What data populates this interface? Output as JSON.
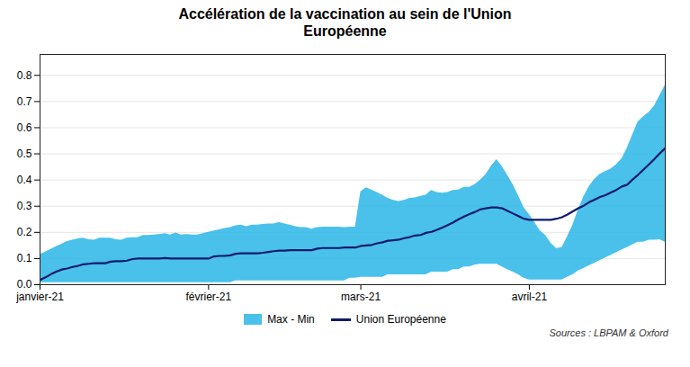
{
  "chart_data": {
    "type": "area",
    "title": "Accélération de la vaccination au sein de l'Union\nEuropéenne",
    "source": "Sources : LBPAM & Oxford",
    "x": [
      0,
      1,
      2,
      3,
      4,
      5,
      6,
      7,
      8,
      9,
      10,
      11,
      12,
      13,
      14,
      15,
      16,
      17,
      18,
      19,
      20,
      21,
      22,
      23,
      24,
      25,
      26,
      27,
      28,
      29,
      30,
      31,
      32,
      33,
      34,
      35,
      36,
      37,
      38,
      39,
      40,
      41,
      42,
      43,
      44,
      45,
      46,
      47,
      48,
      49,
      50,
      51,
      52,
      53,
      54,
      55,
      56,
      57,
      58,
      59,
      60,
      61,
      62,
      63,
      64,
      65,
      66,
      67,
      68,
      69,
      70,
      71,
      72,
      73,
      74,
      75,
      76,
      77,
      78,
      79,
      80,
      81,
      82,
      83,
      84,
      85,
      86,
      87,
      88,
      89,
      90,
      91,
      92,
      93,
      94,
      95,
      96,
      97,
      98,
      99,
      100,
      101,
      102,
      103,
      104,
      105,
      106,
      107,
      108,
      109,
      110,
      111,
      112,
      113,
      114,
      115
    ],
    "xlim": [
      0,
      115
    ],
    "xticks": [
      {
        "value": 0,
        "label": "janvier-21"
      },
      {
        "value": 31,
        "label": "février-21"
      },
      {
        "value": 59,
        "label": "mars-21"
      },
      {
        "value": 90,
        "label": "avril-21"
      }
    ],
    "ylim": [
      0,
      0.88
    ],
    "yticks": [
      {
        "value": 0,
        "label": "0.0"
      },
      0.1,
      0.2,
      0.3,
      0.4,
      0.5,
      0.6,
      0.7,
      0.8
    ],
    "grid": true,
    "legend": "bottom",
    "series": [
      {
        "name": "Max - Min",
        "type": "area",
        "color": "#29B6E8",
        "max_values": [
          0.115,
          0.125,
          0.135,
          0.145,
          0.155,
          0.165,
          0.17,
          0.175,
          0.178,
          0.172,
          0.17,
          0.178,
          0.178,
          0.178,
          0.172,
          0.17,
          0.178,
          0.18,
          0.18,
          0.188,
          0.188,
          0.19,
          0.192,
          0.195,
          0.19,
          0.198,
          0.19,
          0.192,
          0.19,
          0.19,
          0.195,
          0.2,
          0.205,
          0.21,
          0.215,
          0.218,
          0.225,
          0.228,
          0.222,
          0.228,
          0.228,
          0.23,
          0.232,
          0.232,
          0.238,
          0.232,
          0.228,
          0.222,
          0.218,
          0.218,
          0.212,
          0.218,
          0.22,
          0.22,
          0.22,
          0.22,
          0.218,
          0.22,
          0.22,
          0.355,
          0.37,
          0.362,
          0.352,
          0.342,
          0.33,
          0.322,
          0.318,
          0.322,
          0.33,
          0.332,
          0.338,
          0.342,
          0.36,
          0.352,
          0.35,
          0.352,
          0.36,
          0.362,
          0.372,
          0.372,
          0.382,
          0.4,
          0.42,
          0.452,
          0.478,
          0.452,
          0.418,
          0.382,
          0.34,
          0.295,
          0.268,
          0.238,
          0.205,
          0.188,
          0.158,
          0.138,
          0.142,
          0.182,
          0.228,
          0.285,
          0.335,
          0.375,
          0.402,
          0.422,
          0.432,
          0.442,
          0.458,
          0.48,
          0.522,
          0.572,
          0.622,
          0.642,
          0.658,
          0.682,
          0.722,
          0.762
        ],
        "min_values": [
          0.008,
          0.008,
          0.008,
          0.008,
          0.008,
          0.008,
          0.008,
          0.008,
          0.008,
          0.008,
          0.008,
          0.008,
          0.008,
          0.008,
          0.008,
          0.008,
          0.008,
          0.008,
          0.008,
          0.008,
          0.008,
          0.008,
          0.008,
          0.008,
          0.008,
          0.008,
          0.008,
          0.008,
          0.008,
          0.008,
          0.008,
          0.008,
          0.008,
          0.008,
          0.008,
          0.008,
          0.015,
          0.015,
          0.015,
          0.015,
          0.015,
          0.015,
          0.015,
          0.015,
          0.015,
          0.015,
          0.015,
          0.015,
          0.015,
          0.015,
          0.015,
          0.015,
          0.015,
          0.015,
          0.015,
          0.015,
          0.015,
          0.025,
          0.025,
          0.028,
          0.028,
          0.028,
          0.028,
          0.028,
          0.038,
          0.038,
          0.038,
          0.038,
          0.038,
          0.038,
          0.038,
          0.038,
          0.048,
          0.048,
          0.048,
          0.048,
          0.058,
          0.058,
          0.068,
          0.068,
          0.075,
          0.078,
          0.078,
          0.078,
          0.078,
          0.068,
          0.058,
          0.048,
          0.038,
          0.025,
          0.018,
          0.018,
          0.018,
          0.018,
          0.018,
          0.018,
          0.018,
          0.028,
          0.038,
          0.052,
          0.062,
          0.072,
          0.082,
          0.092,
          0.102,
          0.112,
          0.122,
          0.132,
          0.142,
          0.152,
          0.162,
          0.162,
          0.17,
          0.17,
          0.172,
          0.162
        ]
      },
      {
        "name": "Union Européenne",
        "type": "line",
        "color": "#0D1B6E",
        "values": [
          0.018,
          0.028,
          0.04,
          0.05,
          0.058,
          0.062,
          0.068,
          0.072,
          0.078,
          0.08,
          0.082,
          0.082,
          0.082,
          0.088,
          0.09,
          0.09,
          0.092,
          0.098,
          0.1,
          0.1,
          0.1,
          0.1,
          0.1,
          0.102,
          0.1,
          0.1,
          0.1,
          0.1,
          0.1,
          0.1,
          0.1,
          0.1,
          0.108,
          0.11,
          0.11,
          0.112,
          0.118,
          0.12,
          0.12,
          0.12,
          0.12,
          0.122,
          0.125,
          0.128,
          0.13,
          0.13,
          0.132,
          0.132,
          0.132,
          0.132,
          0.132,
          0.138,
          0.14,
          0.14,
          0.14,
          0.14,
          0.142,
          0.142,
          0.142,
          0.148,
          0.15,
          0.152,
          0.158,
          0.162,
          0.168,
          0.17,
          0.172,
          0.178,
          0.182,
          0.188,
          0.19,
          0.198,
          0.202,
          0.21,
          0.218,
          0.228,
          0.238,
          0.25,
          0.26,
          0.27,
          0.278,
          0.288,
          0.292,
          0.295,
          0.295,
          0.292,
          0.282,
          0.272,
          0.262,
          0.252,
          0.248,
          0.248,
          0.248,
          0.248,
          0.248,
          0.252,
          0.258,
          0.268,
          0.28,
          0.292,
          0.302,
          0.315,
          0.325,
          0.335,
          0.342,
          0.352,
          0.362,
          0.375,
          0.382,
          0.402,
          0.42,
          0.44,
          0.46,
          0.48,
          0.502,
          0.522
        ]
      }
    ]
  }
}
